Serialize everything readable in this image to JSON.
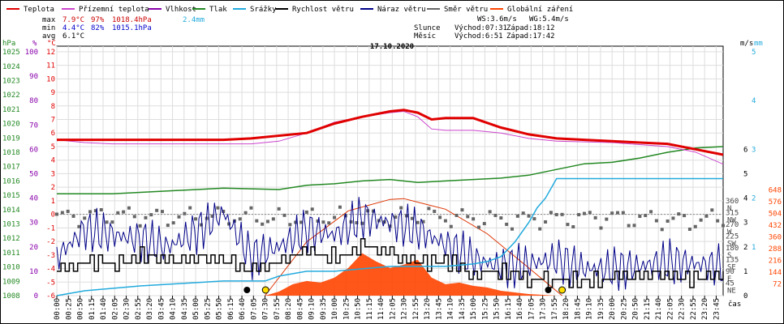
{
  "legend": [
    {
      "label": "Teplota",
      "color": "#e00000"
    },
    {
      "label": "Přízemní teplota",
      "color": "#cc44cc"
    },
    {
      "label": "Vlhkost",
      "color": "#8800aa"
    },
    {
      "label": "Tlak",
      "color": "#228822"
    },
    {
      "label": "Srážky",
      "color": "#22aadd"
    },
    {
      "label": "Rychlost větru",
      "color": "#000000"
    },
    {
      "label": "Náraz větru",
      "color": "#000088"
    },
    {
      "label": "Směr větru",
      "color": "#666666"
    },
    {
      "label": "Globální záření",
      "color": "#ff4400"
    }
  ],
  "stats": {
    "max": {
      "label": "max",
      "temp": "7.9°C",
      "hum": "97%",
      "press": "1018.4hPa",
      "rain": "2.4mm"
    },
    "min": {
      "label": "min",
      "temp": "4.4°C",
      "hum": "82%",
      "press": "1015.1hPa"
    },
    "avg": {
      "label": "avg",
      "temp": "6.1°C"
    }
  },
  "wind_info": {
    "ws": "WS:3.6m/s",
    "wg": "WG:5.4m/s"
  },
  "sun": {
    "label": "Slunce",
    "rise": "Východ:07:31",
    "set": "Západ:18:12"
  },
  "moon": {
    "label": "Měsíc",
    "rise": "Východ:6:51",
    "set": "Západ:17:42"
  },
  "chart_data": {
    "type": "line",
    "title": "17.10.2020",
    "xlabel": "čas",
    "x_ticks": [
      "00:00",
      "00:25",
      "00:50",
      "01:15",
      "01:40",
      "02:05",
      "02:30",
      "02:55",
      "03:20",
      "03:45",
      "04:10",
      "04:35",
      "05:00",
      "05:25",
      "05:50",
      "06:15",
      "06:40",
      "07:05",
      "07:30",
      "07:55",
      "08:20",
      "08:45",
      "09:10",
      "09:35",
      "10:00",
      "10:25",
      "10:50",
      "11:15",
      "11:40",
      "12:05",
      "12:30",
      "12:55",
      "13:20",
      "13:45",
      "14:10",
      "14:35",
      "15:00",
      "15:25",
      "15:50",
      "16:15",
      "16:40",
      "17:05",
      "17:30",
      "17:55",
      "18:20",
      "18:45",
      "19:10",
      "19:35",
      "20:00",
      "20:25",
      "20:50",
      "21:15",
      "21:40",
      "22:05",
      "22:30",
      "22:55",
      "23:20",
      "23:45"
    ],
    "axes": {
      "press": {
        "unit": "hPa",
        "ticks": [
          "1008",
          "1009",
          "1010",
          "1011",
          "1012",
          "1013",
          "1014",
          "1015",
          "1016",
          "1017",
          "1018",
          "1019",
          "1020",
          "1021",
          "1022",
          "1023",
          "1024",
          "1025"
        ]
      },
      "hum": {
        "unit": "%",
        "ticks": [
          "0",
          "10",
          "20",
          "30",
          "40",
          "50",
          "60",
          "70",
          "80",
          "90",
          "100"
        ]
      },
      "temp": {
        "unit": "°C",
        "ticks": [
          "-6",
          "-5",
          "-4",
          "-3",
          "-2",
          "-1",
          "0",
          "1",
          "2",
          "3",
          "4",
          "5",
          "6",
          "7",
          "8",
          "9",
          "10",
          "11",
          "12"
        ]
      },
      "dir": {
        "ticks": [
          "45",
          "90",
          "135",
          "180",
          "225",
          "270",
          "315",
          "360"
        ],
        "labels": [
          "NE",
          "E",
          "SE",
          "S",
          "SW",
          "W",
          "NW",
          "N"
        ]
      },
      "wind": {
        "unit": "m/s",
        "ticks": [
          "0",
          "1",
          "2",
          "3",
          "4",
          "5",
          "6"
        ]
      },
      "rain": {
        "unit": "mm",
        "ticks": [
          "1",
          "2",
          "3",
          "4",
          "5"
        ]
      },
      "rad": {
        "ticks": [
          "72",
          "144",
          "216",
          "288",
          "360",
          "432",
          "504",
          "576",
          "648"
        ]
      }
    },
    "series": [
      {
        "name": "Teplota",
        "unit": "°C",
        "x": [
          0,
          6,
          7,
          9,
          10,
          11,
          12,
          12.5,
          13,
          13.5,
          14,
          15,
          16,
          17,
          18,
          19,
          20,
          21,
          22,
          23,
          24
        ],
        "y": [
          5.5,
          5.5,
          5.6,
          6,
          6.7,
          7.2,
          7.6,
          7.7,
          7.5,
          7,
          7.1,
          7.1,
          6.4,
          5.9,
          5.6,
          5.5,
          5.4,
          5.3,
          5.2,
          4.8,
          4.4
        ]
      },
      {
        "name": "Přízemní teplota",
        "unit": "°C",
        "x": [
          0,
          1,
          2,
          6,
          7,
          8,
          9,
          10,
          11,
          12,
          12.5,
          13,
          13.5,
          14,
          15,
          16,
          17,
          18,
          20,
          22,
          23,
          24
        ],
        "y": [
          5.5,
          5.3,
          5.2,
          5.2,
          5.2,
          5.4,
          6,
          6.8,
          7.2,
          7.5,
          7.6,
          7.2,
          6.3,
          6.2,
          6.2,
          6.0,
          5.6,
          5.4,
          5.3,
          5.0,
          4.6,
          3.7
        ]
      },
      {
        "name": "Vlhkost",
        "unit": "%",
        "x": [
          0,
          1.5,
          4,
          6.5,
          7,
          9,
          10,
          11,
          12,
          12.5,
          13,
          13.5,
          14,
          15,
          16,
          17,
          18,
          20,
          22,
          24
        ],
        "y": [
          97,
          97,
          96,
          95,
          93,
          91,
          88,
          85,
          82,
          83,
          87,
          90,
          91,
          91,
          92,
          92,
          93,
          94,
          93,
          93
        ]
      },
      {
        "name": "Tlak",
        "unit": "hPa",
        "x": [
          0,
          2,
          4,
          6,
          8,
          9,
          10,
          11,
          12,
          13,
          14,
          15,
          16,
          17,
          18,
          19,
          20,
          21,
          22,
          23,
          24
        ],
        "y": [
          1015.1,
          1015.1,
          1015.3,
          1015.5,
          1015.4,
          1015.7,
          1015.8,
          1016.0,
          1016.1,
          1015.9,
          1016.0,
          1016.1,
          1016.2,
          1016.4,
          1016.8,
          1017.2,
          1017.3,
          1017.6,
          1018.0,
          1018.3,
          1018.4
        ]
      },
      {
        "name": "Srážky",
        "unit": "mm",
        "x": [
          0,
          1,
          3,
          6,
          7.5,
          8,
          9,
          10,
          11,
          12,
          13,
          14,
          15,
          15.5,
          16,
          16.5,
          17,
          17.3,
          17.6,
          18,
          19,
          20,
          21,
          22,
          23,
          24
        ],
        "y": [
          0,
          0.1,
          0.2,
          0.3,
          0.3,
          0.4,
          0.5,
          0.5,
          0.55,
          0.6,
          0.6,
          0.6,
          0.65,
          0.7,
          0.8,
          1.1,
          1.5,
          1.8,
          2.0,
          2.4,
          2.4,
          2.4,
          2.4,
          2.4,
          2.4,
          2.4
        ]
      },
      {
        "name": "Rychlost větru",
        "unit": "m/s",
        "x": [
          0,
          1,
          2,
          3,
          4,
          5,
          6,
          7,
          8,
          9,
          10,
          11,
          12,
          13,
          14,
          15,
          16,
          17,
          18,
          19,
          20,
          21,
          22,
          23,
          24
        ],
        "y": [
          1.1,
          1.4,
          1.3,
          1.6,
          1.5,
          1.6,
          1.4,
          1.1,
          1.4,
          1.9,
          1.6,
          2.0,
          1.8,
          1.3,
          1.4,
          0.9,
          1.0,
          0.7,
          0.6,
          0.6,
          0.7,
          0.9,
          0.8,
          0.7,
          1.0
        ]
      },
      {
        "name": "Náraz větru",
        "unit": "m/s",
        "x": [
          0,
          1,
          2,
          3,
          4,
          5,
          6,
          7,
          8,
          9,
          10,
          11,
          12,
          13,
          14,
          15,
          16,
          17,
          18,
          19,
          20,
          21,
          22,
          23,
          24
        ],
        "y": [
          1.6,
          2.7,
          2.5,
          2.3,
          2.0,
          2.6,
          3.4,
          1.6,
          2.0,
          2.7,
          2.5,
          3.2,
          3.0,
          2.7,
          2.1,
          1.5,
          1.2,
          1.3,
          1.5,
          1.1,
          1.1,
          1.2,
          1.4,
          1.3,
          1.2
        ]
      },
      {
        "name": "Směr větru",
        "unit": "°",
        "x": [
          0,
          2,
          4,
          6,
          8,
          10,
          12,
          13,
          14,
          16,
          18,
          20,
          22,
          23,
          24
        ],
        "y": [
          300,
          310,
          300,
          305,
          295,
          300,
          295,
          305,
          300,
          290,
          295,
          300,
          290,
          285,
          300
        ]
      },
      {
        "name": "Globální záření",
        "unit": "W/m2",
        "type": "area",
        "x": [
          7.5,
          8,
          8.5,
          9,
          9.5,
          10,
          10.5,
          11,
          11.5,
          12,
          12.5,
          13,
          13.5,
          14,
          14.5,
          15,
          15.5,
          16,
          16.5,
          17,
          17.5,
          18
        ],
        "y": [
          0,
          25,
          70,
          90,
          80,
          110,
          170,
          260,
          210,
          170,
          190,
          220,
          110,
          70,
          80,
          60,
          50,
          30,
          20,
          10,
          5,
          0
        ]
      },
      {
        "name": "clear-sky",
        "unit": "W/m2",
        "x": [
          7.5,
          9,
          10.5,
          12,
          12.5,
          14,
          15.5,
          17,
          18.2
        ],
        "y": [
          0,
          330,
          520,
          590,
          595,
          530,
          380,
          170,
          0
        ]
      }
    ],
    "markers": {
      "sunrise": "07:31",
      "sunset": "18:12",
      "moonrise": "06:51",
      "moonset": "17:42"
    }
  }
}
